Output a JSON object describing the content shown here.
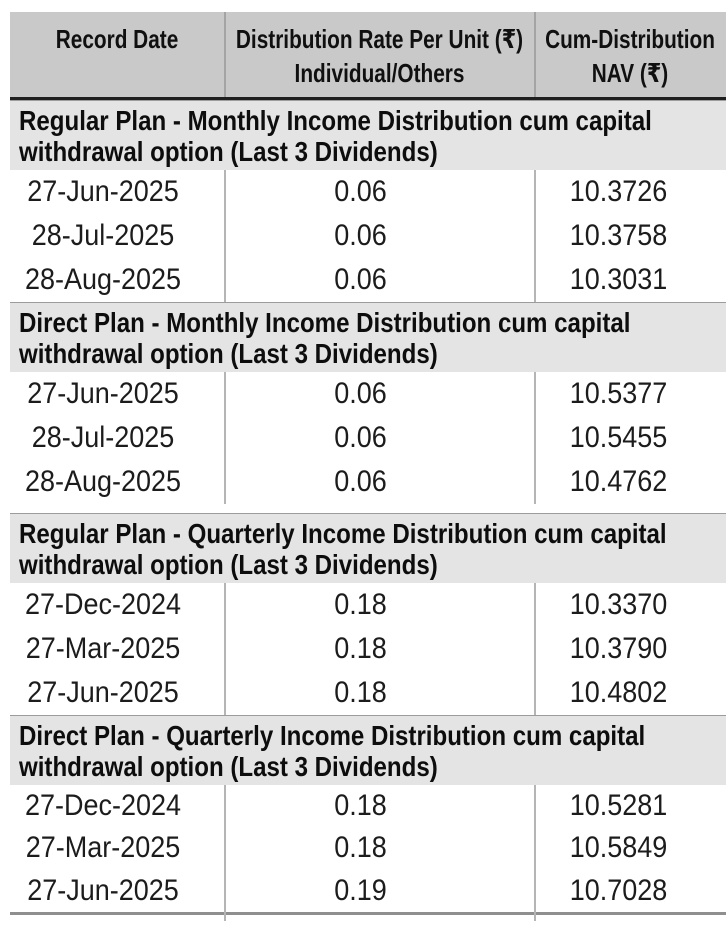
{
  "theme": {
    "header_bg": "#c9c9c9",
    "section_bg": "#e4e4e4",
    "divider": "#b5b5b5",
    "header_rule": "#1f1f1f",
    "bottom_rule": "#8f8f8f"
  },
  "header": {
    "record_date": "Record Date",
    "rate_line1": "Distribution Rate Per Unit (₹)",
    "rate_line2": "Individual/Others",
    "cum_nav": "Cum-Distribution NAV (₹)"
  },
  "sections": [
    {
      "title": "Regular Plan - Monthly Income Distribution cum capital withdrawal option (Last 3 Dividends)",
      "rows": [
        [
          "27-Jun-2025",
          "0.06",
          "10.3726"
        ],
        [
          "28-Jul-2025",
          "0.06",
          "10.3758"
        ],
        [
          "28-Aug-2025",
          "0.06",
          "10.3031"
        ]
      ]
    },
    {
      "title": "Direct Plan - Monthly Income Distribution cum capital withdrawal option (Last 3 Dividends)",
      "rows": [
        [
          "27-Jun-2025",
          "0.06",
          "10.5377"
        ],
        [
          "28-Jul-2025",
          "0.06",
          "10.5455"
        ],
        [
          "28-Aug-2025",
          "0.06",
          "10.4762"
        ]
      ]
    },
    {
      "title": "Regular Plan - Quarterly Income Distribution cum capital withdrawal option (Last 3 Dividends)",
      "rows": [
        [
          "27-Dec-2024",
          "0.18",
          "10.3370"
        ],
        [
          "27-Mar-2025",
          "0.18",
          "10.3790"
        ],
        [
          "27-Jun-2025",
          "0.18",
          "10.4802"
        ]
      ]
    },
    {
      "title": "Direct Plan - Quarterly Income Distribution cum capital withdrawal option (Last 3 Dividends)",
      "rows": [
        [
          "27-Dec-2024",
          "0.18",
          "10.5281"
        ],
        [
          "27-Mar-2025",
          "0.18",
          "10.5849"
        ],
        [
          "27-Jun-2025",
          "0.19",
          "10.7028"
        ]
      ]
    }
  ]
}
